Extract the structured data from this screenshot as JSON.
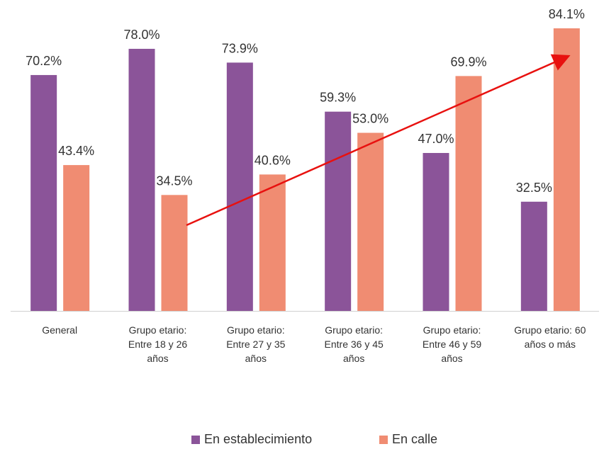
{
  "chart_data": {
    "type": "bar",
    "categories": [
      "General",
      "Grupo etario: Entre 18 y 26 años",
      "Grupo etario: Entre 27 y 35 años",
      "Grupo etario: Entre 36 y 45 años",
      "Grupo etario: Entre 46 y 59 años",
      "Grupo etario: 60 años o más"
    ],
    "series": [
      {
        "name": "En establecimiento",
        "color": "#8b5499",
        "values": [
          70.2,
          78.0,
          73.9,
          59.3,
          47.0,
          32.5
        ],
        "value_labels": [
          "70.2%",
          "78.0%",
          "73.9%",
          "59.3%",
          "47.0%",
          "32.5%"
        ]
      },
      {
        "name": "En calle",
        "color": "#f08c72",
        "values": [
          43.4,
          34.5,
          40.6,
          53.0,
          69.9,
          84.1
        ],
        "value_labels": [
          "43.4%",
          "34.5%",
          "40.6%",
          "53.0%",
          "69.9%",
          "84.1%"
        ]
      }
    ],
    "legend": "bottom"
  }
}
